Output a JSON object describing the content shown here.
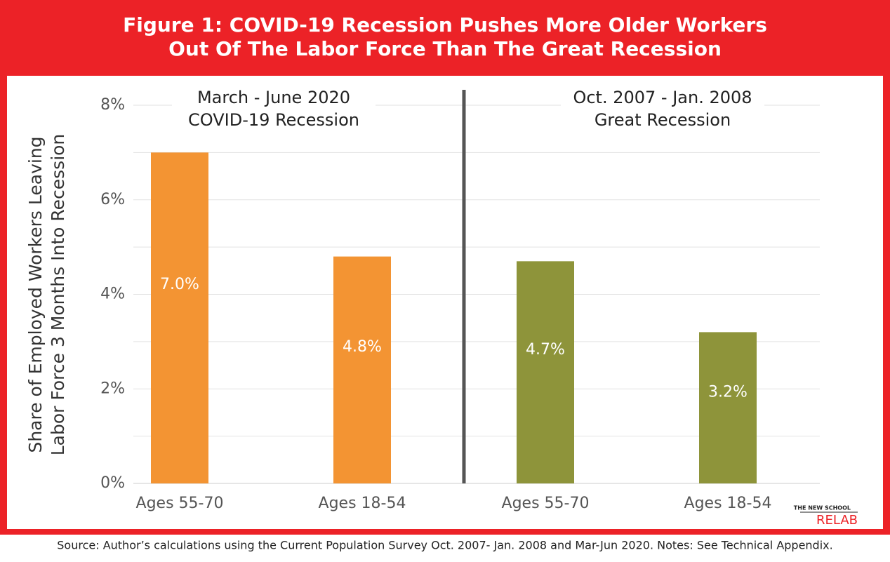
{
  "chart_data": {
    "type": "bar",
    "title": [
      "Figure 1: COVID-19 Recession Pushes More Older Workers",
      "Out Of The Labor Force Than The Great Recession"
    ],
    "y_label": [
      "Share of Employed Workers Leaving",
      "Labor Force 3 Months Into Recession"
    ],
    "groups": [
      {
        "label": [
          "March - June 2020",
          "COVID-19 Recession"
        ],
        "color": "#f39433",
        "categories": [
          "Ages 55-70",
          "Ages 18-54"
        ],
        "values": [
          7.0,
          4.8
        ],
        "value_labels": [
          "7.0%",
          "4.8%"
        ]
      },
      {
        "label": [
          "Oct. 2007 - Jan. 2008",
          "Great Recession"
        ],
        "color": "#8e943a",
        "categories": [
          "Ages 55-70",
          "Ages 18-54"
        ],
        "values": [
          4.7,
          3.2
        ],
        "value_labels": [
          "4.7%",
          "3.2%"
        ]
      }
    ],
    "ylim": [
      0,
      8
    ],
    "yticks": [
      {
        "value": 0,
        "label": "0%"
      },
      {
        "value": 2,
        "label": "2%"
      },
      {
        "value": 4,
        "label": "4%"
      },
      {
        "value": 6,
        "label": "6%"
      },
      {
        "value": 8,
        "label": "8%"
      }
    ],
    "minor_yticks": [
      1,
      3,
      5,
      7
    ],
    "grid": true,
    "logo": [
      "THE NEW SCHOOL",
      "RELAB"
    ],
    "source": "Source: Author’s calculations using the Current Population Survey Oct. 2007- Jan. 2008 and Mar-Jun 2020. Notes: See Technical Appendix."
  }
}
